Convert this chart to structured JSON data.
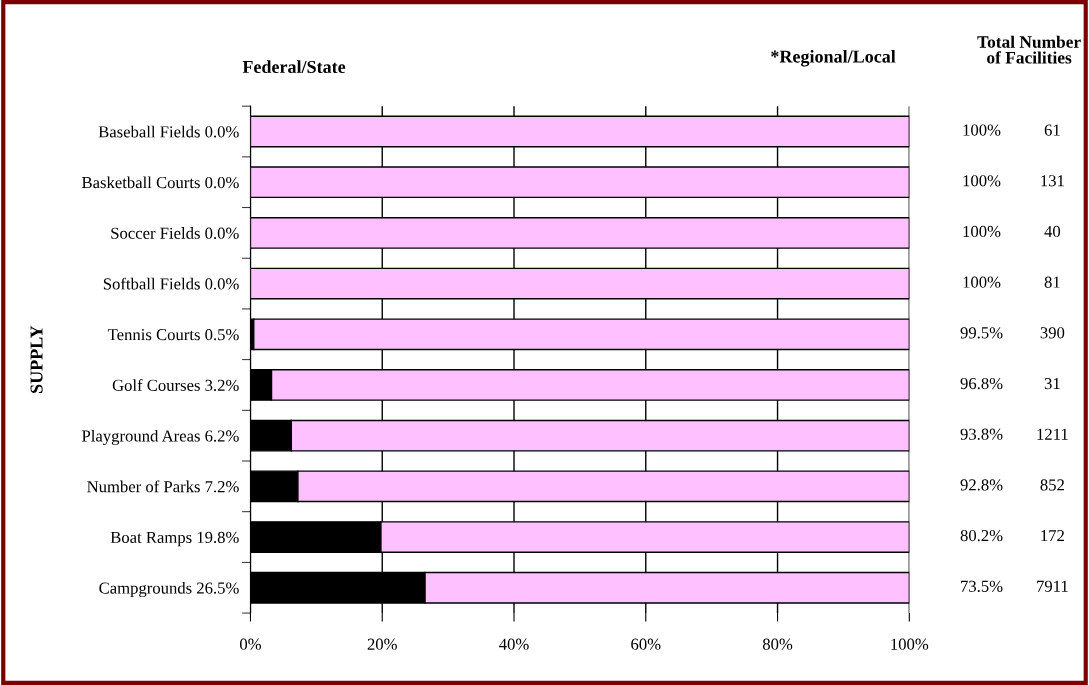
{
  "chart_data": {
    "type": "bar",
    "orientation": "horizontal",
    "stacked": true,
    "ylabel": "SUPPLY",
    "categories": [
      "Baseball Fields 0.0%",
      "Basketball Courts 0.0%",
      "Soccer Fields 0.0%",
      "Softball Fields 0.0%",
      "Tennis Courts 0.5%",
      "Golf Courses 3.2%",
      "Playground Areas 6.2%",
      "Number of Parks 7.2%",
      "Boat Ramps 19.8%",
      "Campgrounds 26.5%"
    ],
    "series": [
      {
        "name": "Federal/State",
        "color": "#000000",
        "values": [
          0,
          0,
          0,
          0,
          0.5,
          3.2,
          6.2,
          7.2,
          19.8,
          26.5
        ]
      },
      {
        "name": "*Regional/Local",
        "color": "#ffc0ff",
        "values": [
          100,
          100,
          100,
          100,
          99.5,
          96.8,
          93.8,
          92.8,
          80.2,
          73.5
        ],
        "value_labels": [
          "100%",
          "100%",
          "100%",
          "100%",
          "99.5%",
          "96.8%",
          "93.8%",
          "92.8%",
          "80.2%",
          "73.5%"
        ]
      }
    ],
    "xlim": [
      0,
      100
    ],
    "xticks": [
      {
        "value": 0,
        "label": "0%"
      },
      {
        "value": 20,
        "label": "20%"
      },
      {
        "value": 40,
        "label": "40%"
      },
      {
        "value": 60,
        "label": "60%"
      },
      {
        "value": 80,
        "label": "80%"
      },
      {
        "value": 100,
        "label": "100%"
      }
    ],
    "grid": "x",
    "legend": false,
    "annotations": [
      "Total Number\nof Facilities",
      "61",
      "131",
      "40",
      "81",
      "390",
      "31",
      "1211",
      "852",
      "172",
      "7911"
    ]
  }
}
